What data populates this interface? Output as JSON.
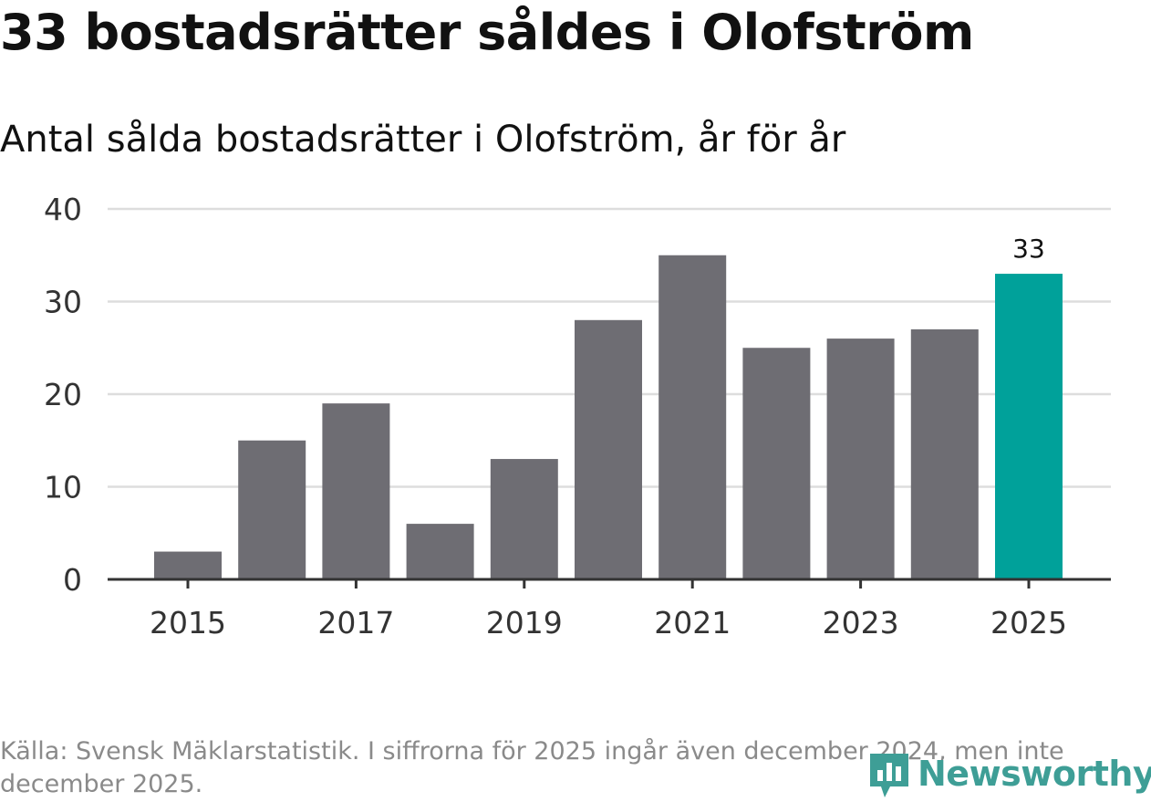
{
  "title": "33 bostadsrätter såldes i Olofström",
  "subtitle": "Antal sålda bostadsrätter i Olofström, år för år",
  "source": "Källa: Svensk Mäklarstatistik. I siffrorna för 2025 ingår även december 2024, men inte december 2025.",
  "logo": {
    "text": "Newsworthy",
    "color": "#3e9e96"
  },
  "colors": {
    "bar": "#6e6d73",
    "highlight": "#00a19a",
    "grid": "#dddddd",
    "axis": "#333333"
  },
  "chart_data": {
    "type": "bar",
    "title": "33 bostadsrätter såldes i Olofström",
    "subtitle": "Antal sålda bostadsrätter i Olofström, år för år",
    "xlabel": "",
    "ylabel": "",
    "categories": [
      "2015",
      "2016",
      "2017",
      "2018",
      "2019",
      "2020",
      "2021",
      "2022",
      "2023",
      "2024",
      "2025"
    ],
    "values": [
      3,
      15,
      19,
      6,
      13,
      28,
      35,
      25,
      26,
      27,
      33
    ],
    "x_tick_labels": [
      "2015",
      "2017",
      "2019",
      "2021",
      "2023",
      "2025"
    ],
    "y_ticks": [
      0,
      10,
      20,
      30,
      40
    ],
    "ylim": [
      0,
      40
    ],
    "grid": true,
    "highlight_category": "2025",
    "data_labels": [
      {
        "category": "2025",
        "text": "33"
      }
    ]
  }
}
